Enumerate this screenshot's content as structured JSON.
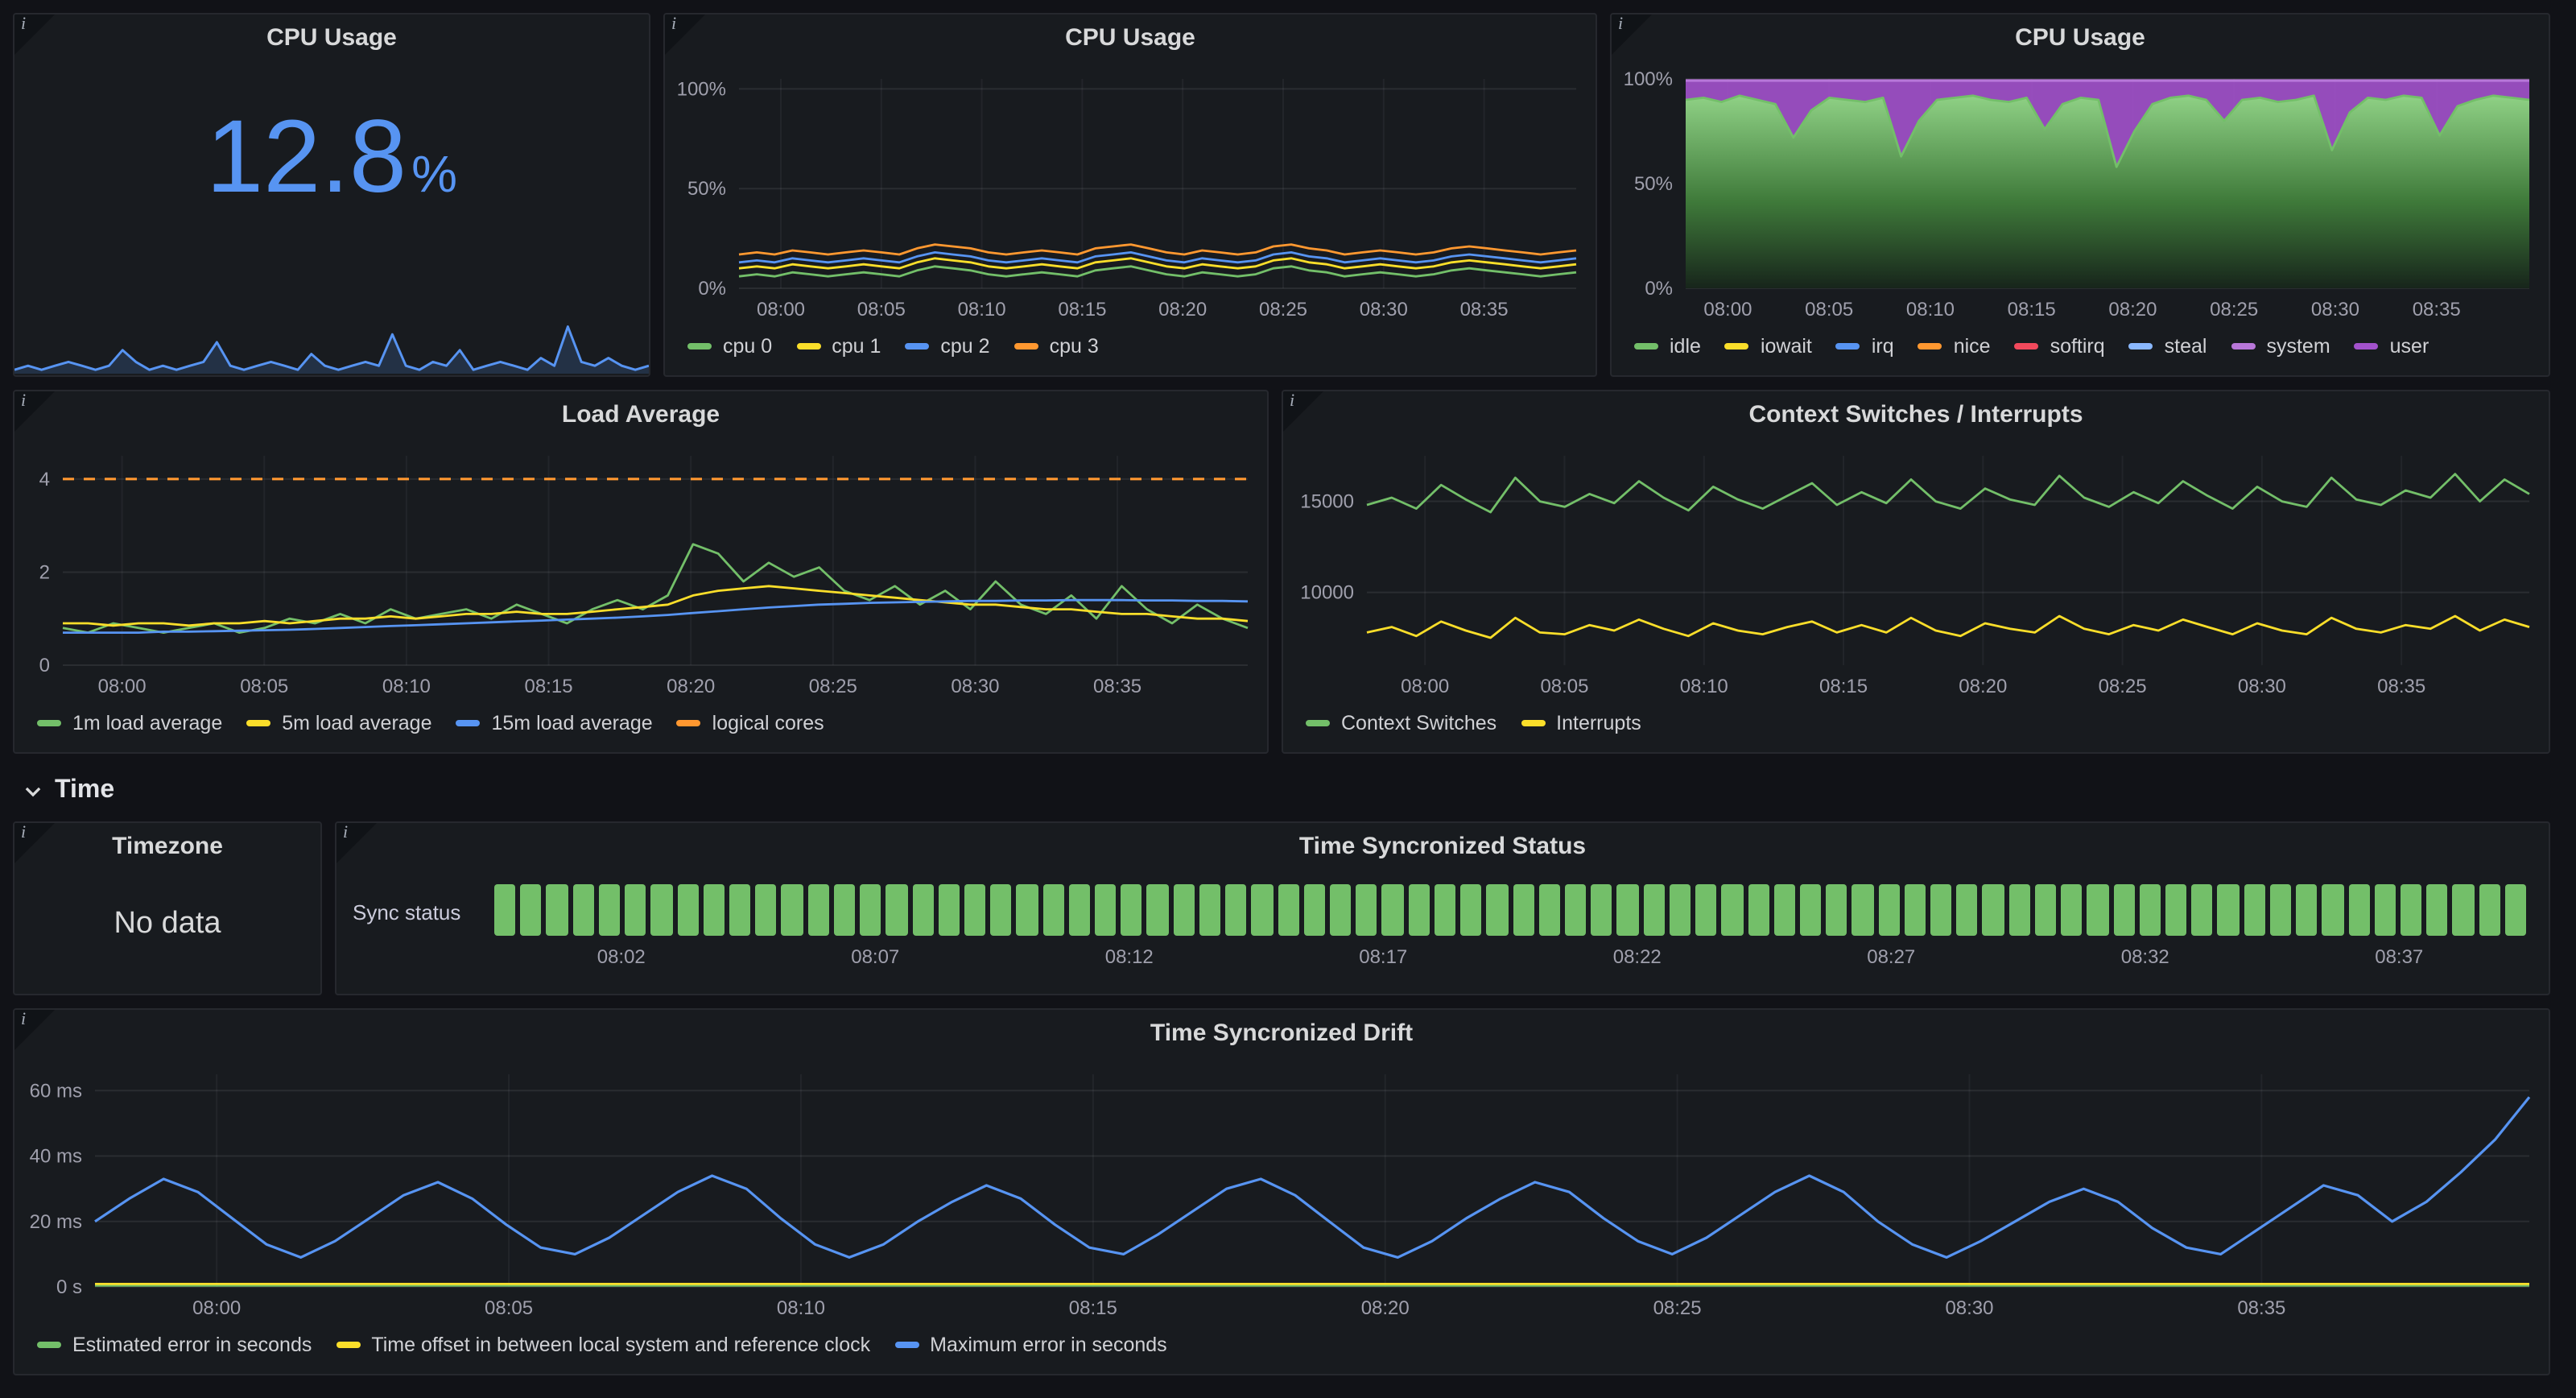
{
  "ui": {
    "info_glyph": "i"
  },
  "section": {
    "time_label": "Time"
  },
  "panels": {
    "cpu_stat": {
      "title": "CPU Usage",
      "value": "12.8",
      "unit": "%"
    },
    "cpu_per_core": {
      "title": "CPU Usage"
    },
    "cpu_stacked": {
      "title": "CPU Usage"
    },
    "load": {
      "title": "Load Average"
    },
    "ctx": {
      "title": "Context Switches / Interrupts"
    },
    "timezone": {
      "title": "Timezone",
      "no_data": "No data"
    },
    "sync_status": {
      "title": "Time Syncronized Status",
      "row_label": "Sync status"
    },
    "drift": {
      "title": "Time Syncronized Drift"
    }
  },
  "charts": {
    "cpu_spark": {
      "type": "line",
      "minimal": true,
      "y_min": 0,
      "y_max": 16,
      "series": [
        {
          "name": "cpu sparkline",
          "color": "#5794F2",
          "width": 1.5,
          "fill": "rgba(87,148,242,0.18)",
          "values": [
            1,
            2,
            1,
            2,
            3,
            2,
            1,
            2,
            6,
            3,
            1,
            2,
            1,
            2,
            3,
            8,
            2,
            1,
            2,
            3,
            2,
            1,
            5,
            2,
            1,
            2,
            3,
            2,
            10,
            2,
            1,
            3,
            2,
            6,
            1,
            2,
            3,
            2,
            1,
            4,
            2,
            12,
            3,
            2,
            4,
            2,
            1,
            2
          ]
        }
      ]
    },
    "cpu_per_core": {
      "type": "line",
      "axis_w": 46,
      "y_min": 0,
      "y_max": 105,
      "y_ticks": [
        {
          "v": 0,
          "label": "0%"
        },
        {
          "v": 50,
          "label": "50%"
        },
        {
          "v": 100,
          "label": "100%"
        }
      ],
      "x_labels": [
        "08:00",
        "08:05",
        "08:10",
        "08:15",
        "08:20",
        "08:25",
        "08:30",
        "08:35"
      ],
      "series": [
        {
          "name": "cpu 0",
          "color": "#73BF69",
          "width": 1.4,
          "values": [
            6,
            7,
            6,
            8,
            7,
            6,
            7,
            8,
            7,
            6,
            9,
            11,
            10,
            9,
            7,
            6,
            7,
            8,
            7,
            6,
            9,
            10,
            11,
            9,
            7,
            6,
            8,
            7,
            6,
            7,
            10,
            11,
            9,
            8,
            6,
            7,
            8,
            7,
            6,
            7,
            9,
            10,
            9,
            8,
            7,
            6,
            7,
            8
          ]
        },
        {
          "name": "cpu 1",
          "color": "#FADE2A",
          "width": 1.4,
          "values": [
            10,
            11,
            10,
            12,
            11,
            10,
            11,
            12,
            11,
            10,
            13,
            15,
            14,
            13,
            11,
            10,
            11,
            12,
            11,
            10,
            13,
            14,
            15,
            13,
            11,
            10,
            12,
            11,
            10,
            11,
            14,
            15,
            13,
            12,
            10,
            11,
            12,
            11,
            10,
            11,
            13,
            14,
            13,
            12,
            11,
            10,
            11,
            12
          ]
        },
        {
          "name": "cpu 2",
          "color": "#5794F2",
          "width": 1.4,
          "values": [
            13,
            14,
            13,
            15,
            14,
            13,
            14,
            15,
            14,
            13,
            16,
            18,
            17,
            16,
            14,
            13,
            14,
            15,
            14,
            13,
            16,
            17,
            18,
            16,
            14,
            13,
            15,
            14,
            13,
            14,
            17,
            18,
            16,
            15,
            13,
            14,
            15,
            14,
            13,
            14,
            16,
            17,
            16,
            15,
            14,
            13,
            14,
            15
          ]
        },
        {
          "name": "cpu 3",
          "color": "#FF9830",
          "width": 1.4,
          "values": [
            17,
            18,
            17,
            19,
            18,
            17,
            18,
            19,
            18,
            17,
            20,
            22,
            21,
            20,
            18,
            17,
            18,
            19,
            18,
            17,
            20,
            21,
            22,
            20,
            18,
            17,
            19,
            18,
            17,
            18,
            21,
            22,
            20,
            19,
            17,
            18,
            19,
            18,
            17,
            18,
            20,
            21,
            20,
            19,
            18,
            17,
            18,
            19
          ]
        }
      ],
      "legend": [
        {
          "label": "cpu 0",
          "color": "#73BF69"
        },
        {
          "label": "cpu 1",
          "color": "#FADE2A"
        },
        {
          "label": "cpu 2",
          "color": "#5794F2"
        },
        {
          "label": "cpu 3",
          "color": "#FF9830"
        }
      ]
    },
    "cpu_stacked": {
      "type": "line",
      "axis_w": 46,
      "y_min": 0,
      "y_max": 100,
      "y_ticks": [
        {
          "v": 0,
          "label": "0%"
        },
        {
          "v": 50,
          "label": "50%"
        },
        {
          "v": 100,
          "label": "100%"
        }
      ],
      "x_labels": [
        "08:00",
        "08:05",
        "08:10",
        "08:15",
        "08:20",
        "08:25",
        "08:30",
        "08:35"
      ],
      "series": [
        {
          "name": "user",
          "color": "#B877D9",
          "width": 1.6,
          "const": 99.2,
          "fill": "rgba(163,82,204,0.9)"
        },
        {
          "name": "idle",
          "color": "#73BF69",
          "width": 1.4,
          "fill": "gradient-green",
          "values": [
            90,
            91,
            89,
            92,
            90,
            88,
            72,
            85,
            91,
            90,
            89,
            91,
            63,
            80,
            90,
            91,
            92,
            90,
            89,
            91,
            76,
            88,
            91,
            90,
            58,
            75,
            88,
            91,
            92,
            90,
            80,
            90,
            91,
            89,
            90,
            92,
            66,
            84,
            91,
            90,
            92,
            91,
            73,
            87,
            90,
            92,
            91,
            90
          ]
        }
      ],
      "legend": [
        {
          "label": "idle",
          "color": "#73BF69"
        },
        {
          "label": "iowait",
          "color": "#FADE2A"
        },
        {
          "label": "irq",
          "color": "#5794F2"
        },
        {
          "label": "nice",
          "color": "#FF9830"
        },
        {
          "label": "softirq",
          "color": "#F2495C"
        },
        {
          "label": "steal",
          "color": "#8AB8FF"
        },
        {
          "label": "system",
          "color": "#B877D9"
        },
        {
          "label": "user",
          "color": "#A352CC"
        }
      ]
    },
    "load": {
      "type": "line",
      "axis_w": 30,
      "y_min": 0,
      "y_max": 4.5,
      "y_ticks": [
        {
          "v": 0,
          "label": "0"
        },
        {
          "v": 2,
          "label": "2"
        },
        {
          "v": 4,
          "label": "4"
        }
      ],
      "x_labels": [
        "08:00",
        "08:05",
        "08:10",
        "08:15",
        "08:20",
        "08:25",
        "08:30",
        "08:35"
      ],
      "series": [
        {
          "name": "1m load average",
          "color": "#73BF69",
          "width": 1.4,
          "values": [
            0.8,
            0.7,
            0.9,
            0.8,
            0.7,
            0.8,
            0.9,
            0.7,
            0.8,
            1.0,
            0.9,
            1.1,
            0.9,
            1.2,
            1.0,
            1.1,
            1.2,
            1.0,
            1.3,
            1.1,
            0.9,
            1.2,
            1.4,
            1.2,
            1.5,
            2.6,
            2.4,
            1.8,
            2.2,
            1.9,
            2.1,
            1.6,
            1.4,
            1.7,
            1.3,
            1.6,
            1.2,
            1.8,
            1.3,
            1.1,
            1.5,
            1.0,
            1.7,
            1.2,
            0.9,
            1.3,
            1.0,
            0.8
          ]
        },
        {
          "name": "5m load average",
          "color": "#FADE2A",
          "width": 1.4,
          "values": [
            0.9,
            0.9,
            0.85,
            0.9,
            0.9,
            0.85,
            0.9,
            0.9,
            0.95,
            0.9,
            0.95,
            1.0,
            1.0,
            1.05,
            1.0,
            1.05,
            1.1,
            1.1,
            1.15,
            1.1,
            1.1,
            1.15,
            1.2,
            1.25,
            1.3,
            1.5,
            1.6,
            1.65,
            1.7,
            1.65,
            1.6,
            1.55,
            1.5,
            1.45,
            1.4,
            1.35,
            1.3,
            1.3,
            1.25,
            1.2,
            1.2,
            1.15,
            1.1,
            1.1,
            1.05,
            1.0,
            1.0,
            0.95
          ]
        },
        {
          "name": "15m load average",
          "color": "#5794F2",
          "width": 1.4,
          "values": [
            0.7,
            0.7,
            0.7,
            0.7,
            0.72,
            0.72,
            0.73,
            0.74,
            0.75,
            0.76,
            0.78,
            0.8,
            0.82,
            0.84,
            0.86,
            0.88,
            0.9,
            0.92,
            0.94,
            0.96,
            0.98,
            1.0,
            1.02,
            1.05,
            1.08,
            1.12,
            1.16,
            1.2,
            1.24,
            1.27,
            1.3,
            1.32,
            1.34,
            1.35,
            1.36,
            1.37,
            1.38,
            1.38,
            1.39,
            1.39,
            1.4,
            1.4,
            1.4,
            1.39,
            1.39,
            1.38,
            1.38,
            1.37
          ]
        },
        {
          "name": "logical cores",
          "color": "#FF9830",
          "width": 1.6,
          "dash": true,
          "const": 4
        }
      ],
      "legend": [
        {
          "label": "1m load average",
          "color": "#73BF69"
        },
        {
          "label": "5m load average",
          "color": "#FADE2A"
        },
        {
          "label": "15m load average",
          "color": "#5794F2"
        },
        {
          "label": "logical cores",
          "color": "#FF9830"
        }
      ]
    },
    "ctx": {
      "type": "line",
      "axis_w": 52,
      "y_min": 6000,
      "y_max": 17500,
      "y_ticks": [
        {
          "v": 10000,
          "label": "10000"
        },
        {
          "v": 15000,
          "label": "15000"
        }
      ],
      "x_labels": [
        "08:00",
        "08:05",
        "08:10",
        "08:15",
        "08:20",
        "08:25",
        "08:30",
        "08:35"
      ],
      "series": [
        {
          "name": "Context Switches",
          "color": "#73BF69",
          "width": 1.4,
          "values": [
            14800,
            15200,
            14600,
            15900,
            15100,
            14400,
            16300,
            15000,
            14700,
            15400,
            14900,
            16100,
            15200,
            14500,
            15800,
            15100,
            14600,
            15300,
            16000,
            14800,
            15500,
            14900,
            16200,
            15000,
            14600,
            15700,
            15100,
            14800,
            16400,
            15200,
            14700,
            15500,
            14900,
            16100,
            15300,
            14600,
            15800,
            15000,
            14700,
            16300,
            15100,
            14800,
            15600,
            15200,
            16500,
            15000,
            16200,
            15400
          ]
        },
        {
          "name": "Interrupts",
          "color": "#FADE2A",
          "width": 1.4,
          "values": [
            7800,
            8100,
            7600,
            8400,
            7900,
            7500,
            8600,
            7800,
            7700,
            8200,
            7900,
            8500,
            8000,
            7600,
            8300,
            7900,
            7700,
            8100,
            8400,
            7800,
            8200,
            7800,
            8600,
            7900,
            7600,
            8300,
            8000,
            7800,
            8700,
            8000,
            7700,
            8200,
            7900,
            8500,
            8100,
            7700,
            8300,
            7900,
            7700,
            8600,
            8000,
            7800,
            8200,
            8000,
            8700,
            7900,
            8500,
            8100
          ]
        }
      ],
      "legend": [
        {
          "label": "Context Switches",
          "color": "#73BF69"
        },
        {
          "label": "Interrupts",
          "color": "#FADE2A"
        }
      ]
    },
    "sync_status": {
      "type": "status",
      "count": 78,
      "color": "#73BF69",
      "x_labels": [
        "08:02",
        "08:07",
        "08:12",
        "08:17",
        "08:22",
        "08:27",
        "08:32",
        "08:37"
      ]
    },
    "drift": {
      "type": "line",
      "axis_w": 50,
      "y_min": 0,
      "y_max": 65,
      "y_ticks": [
        {
          "v": 0,
          "label": "0 s"
        },
        {
          "v": 20,
          "label": "20 ms"
        },
        {
          "v": 40,
          "label": "40 ms"
        },
        {
          "v": 60,
          "label": "60 ms"
        }
      ],
      "x_labels": [
        "08:00",
        "08:05",
        "08:10",
        "08:15",
        "08:20",
        "08:25",
        "08:30",
        "08:35"
      ],
      "series": [
        {
          "name": "Estimated error in seconds",
          "color": "#73BF69",
          "width": 1.4,
          "const": 0.4
        },
        {
          "name": "Time offset in between local system and reference clock",
          "color": "#FADE2A",
          "width": 1.4,
          "const": 0.9
        },
        {
          "name": "Maximum error in seconds",
          "color": "#5794F2",
          "width": 1.6,
          "values": [
            20,
            27,
            33,
            29,
            21,
            13,
            9,
            14,
            21,
            28,
            32,
            27,
            19,
            12,
            10,
            15,
            22,
            29,
            34,
            30,
            21,
            13,
            9,
            13,
            20,
            26,
            31,
            27,
            19,
            12,
            10,
            16,
            23,
            30,
            33,
            28,
            20,
            12,
            9,
            14,
            21,
            27,
            32,
            29,
            21,
            14,
            10,
            15,
            22,
            29,
            34,
            29,
            20,
            13,
            9,
            14,
            20,
            26,
            30,
            26,
            18,
            12,
            10,
            17,
            24,
            31,
            28,
            20,
            26,
            35,
            45,
            58
          ]
        }
      ],
      "legend": [
        {
          "label": "Estimated error in seconds",
          "color": "#73BF69"
        },
        {
          "label": "Time offset in between local system and reference clock",
          "color": "#FADE2A"
        },
        {
          "label": "Maximum error in seconds",
          "color": "#5794F2"
        }
      ]
    }
  }
}
